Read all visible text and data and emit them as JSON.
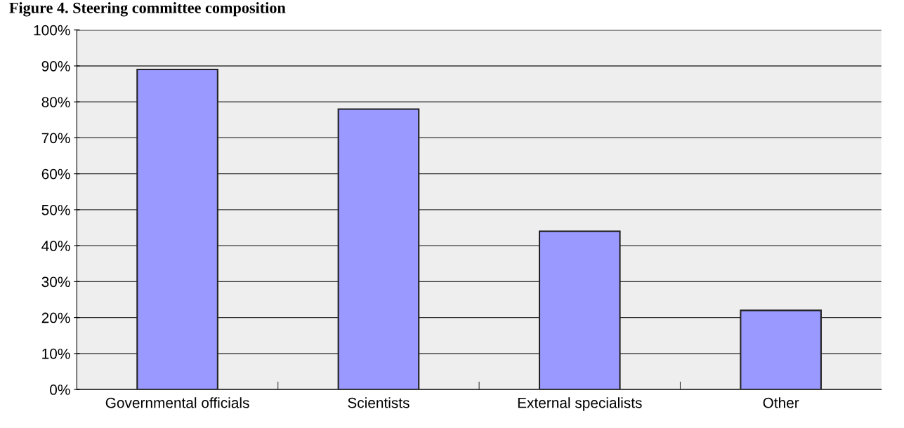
{
  "chart_data": {
    "type": "bar",
    "title": "Figure 4. Steering committee composition",
    "categories": [
      "Governmental officials",
      "Scientists",
      "External specialists",
      "Other"
    ],
    "values": [
      89,
      78,
      44,
      22
    ],
    "color": "#9999ff",
    "ylim": [
      0,
      100
    ],
    "yticks": [
      {
        "value": 0,
        "label": "0%"
      },
      {
        "value": 10,
        "label": "10%"
      },
      {
        "value": 20,
        "label": "20%"
      },
      {
        "value": 30,
        "label": "30%"
      },
      {
        "value": 40,
        "label": "40%"
      },
      {
        "value": 50,
        "label": "50%"
      },
      {
        "value": 60,
        "label": "60%"
      },
      {
        "value": 70,
        "label": "70%"
      },
      {
        "value": 80,
        "label": "80%"
      },
      {
        "value": 90,
        "label": "90%"
      },
      {
        "value": 100,
        "label": "100%"
      }
    ],
    "grid": "y"
  }
}
